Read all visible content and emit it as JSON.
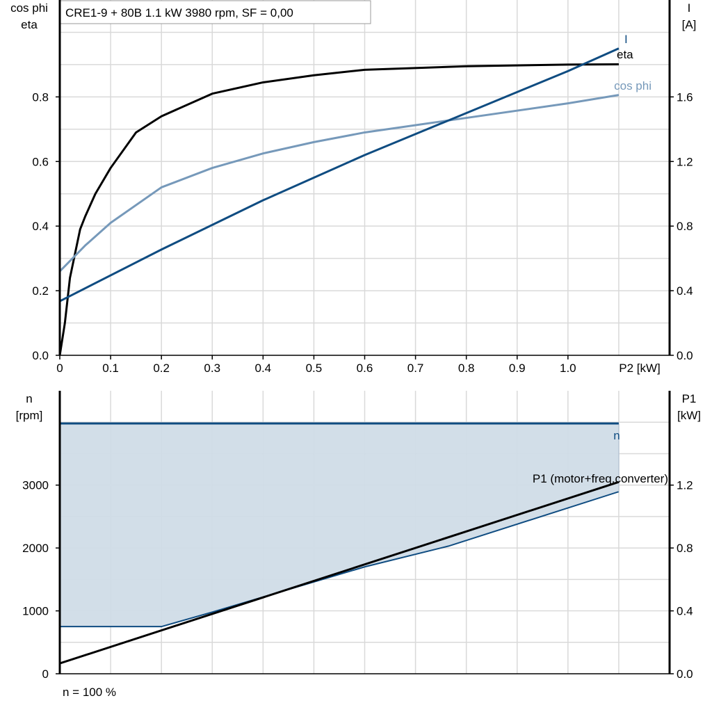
{
  "colors": {
    "eta": "#000000",
    "cos_phi": "#7699ba",
    "I": "#0f4c81",
    "n": "#0f4c81",
    "n_fill": "#d0dce7",
    "P1": "#000000",
    "grid": "#d9d9d9"
  },
  "chart_data": [
    {
      "type": "line",
      "title": "CRE1-9 + 80B   1.1 kW   3980 rpm, SF = 0,00",
      "xlabel": "P2 [kW]",
      "ylabel_left": [
        "cos phi",
        "eta"
      ],
      "ylabel_right": [
        "I",
        "[A]"
      ],
      "xlim": [
        0,
        1.2
      ],
      "ylim_left": [
        0,
        1.1
      ],
      "ylim_right": [
        0,
        2.2
      ],
      "grid": true,
      "x_ticks": [
        "0",
        "0.1",
        "0.2",
        "0.3",
        "0.4",
        "0.5",
        "0.6",
        "0.7",
        "0.8",
        "0.9",
        "1.0"
      ],
      "y_left_ticks": [
        "0.0",
        "0.2",
        "0.4",
        "0.6",
        "0.8"
      ],
      "y_right_ticks": [
        "0.0",
        "0.4",
        "0.8",
        "1.2",
        "1.6"
      ],
      "series": [
        {
          "name": "eta",
          "axis": "left",
          "x": [
            0,
            0.01,
            0.02,
            0.04,
            0.05,
            0.07,
            0.1,
            0.15,
            0.2,
            0.3,
            0.4,
            0.5,
            0.6,
            0.8,
            1.0,
            1.1
          ],
          "y": [
            0,
            0.1,
            0.24,
            0.39,
            0.43,
            0.5,
            0.58,
            0.69,
            0.74,
            0.81,
            0.845,
            0.867,
            0.884,
            0.895,
            0.9,
            0.901
          ]
        },
        {
          "name": "cos phi",
          "axis": "left",
          "x": [
            0,
            0.05,
            0.1,
            0.2,
            0.3,
            0.4,
            0.5,
            0.6,
            0.8,
            1.0,
            1.1
          ],
          "y": [
            0.26,
            0.34,
            0.41,
            0.52,
            0.58,
            0.625,
            0.66,
            0.69,
            0.735,
            0.78,
            0.806
          ]
        },
        {
          "name": "I",
          "axis": "right",
          "x": [
            0,
            0.2,
            0.4,
            0.6,
            0.8,
            1.0,
            1.1
          ],
          "y": [
            0.335,
            0.655,
            0.96,
            1.24,
            1.5,
            1.76,
            1.9
          ]
        }
      ]
    },
    {
      "type": "area",
      "ylabel_left": [
        "n",
        "[rpm]"
      ],
      "ylabel_right": [
        "P1",
        "[kW]"
      ],
      "xlim": [
        0,
        1.2
      ],
      "ylim_left": [
        0,
        4500
      ],
      "ylim_right": [
        0,
        1.8
      ],
      "grid": true,
      "y_left_ticks": [
        "0",
        "1000",
        "2000",
        "3000"
      ],
      "y_right_ticks": [
        "0.0",
        "0.4",
        "0.8",
        "1.2"
      ],
      "footnote": "n = 100 %",
      "series": [
        {
          "name": "n",
          "axis": "left",
          "x": [
            0,
            1.1
          ],
          "y": [
            3980,
            3980
          ]
        },
        {
          "name": "",
          "axis": "left",
          "role": "lower-bound",
          "x": [
            0,
            0.2,
            0.3,
            0.6,
            0.765,
            1.1
          ],
          "y": [
            750,
            750,
            980,
            1700,
            2030,
            2895
          ]
        },
        {
          "name": "P1 (motor+freq.converter)",
          "axis": "right",
          "x": [
            0,
            1.1
          ],
          "y": [
            0.066,
            1.22
          ]
        }
      ]
    }
  ]
}
